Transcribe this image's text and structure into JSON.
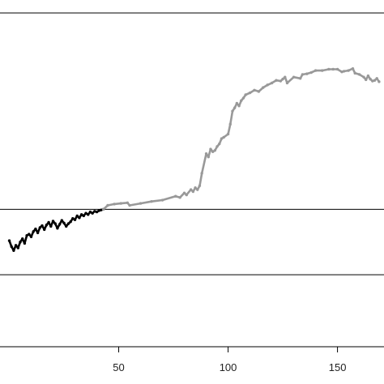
{
  "chart_data": {
    "type": "line",
    "title": "",
    "xlabel": "",
    "ylabel": "",
    "xlim": [
      -5,
      172
    ],
    "ylim": [
      -1.1,
      4.0
    ],
    "x_ticks": [
      50,
      100,
      150
    ],
    "x_tick_labels": [
      "50",
      "100",
      "150"
    ],
    "reference_lines": [
      0,
      1
    ],
    "grid": false,
    "series": [
      {
        "color": "#000000",
        "x": [
          0,
          1,
          2,
          3,
          4,
          5,
          6,
          7,
          8,
          9,
          10,
          11,
          12,
          13,
          14,
          15,
          16,
          17,
          18,
          19,
          20,
          21,
          22,
          23,
          24,
          25,
          26,
          27,
          28,
          29,
          30,
          31,
          32,
          33,
          34,
          35,
          36,
          37,
          38,
          39,
          40,
          41,
          42,
          43
        ],
        "y": [
          0.52,
          0.43,
          0.37,
          0.45,
          0.41,
          0.5,
          0.55,
          0.48,
          0.6,
          0.62,
          0.58,
          0.66,
          0.7,
          0.64,
          0.72,
          0.75,
          0.69,
          0.76,
          0.8,
          0.74,
          0.82,
          0.78,
          0.71,
          0.77,
          0.83,
          0.79,
          0.74,
          0.78,
          0.81,
          0.86,
          0.84,
          0.9,
          0.87,
          0.92,
          0.9,
          0.94,
          0.92,
          0.96,
          0.94,
          0.97,
          0.96,
          0.98,
          0.99,
          1.0
        ]
      },
      {
        "color": "#999999",
        "x": [
          43,
          45,
          48,
          51,
          54,
          55,
          60,
          65,
          70,
          76,
          78,
          80,
          81,
          83,
          84,
          85,
          86,
          87,
          88,
          90,
          91,
          92,
          93,
          94,
          95,
          96,
          97,
          98,
          100,
          101,
          102,
          103,
          104,
          105,
          106,
          107,
          108,
          110,
          112,
          114,
          116,
          118,
          120,
          122,
          124,
          125,
          126,
          127,
          130,
          133,
          134,
          136,
          138,
          140,
          143,
          146,
          148,
          150,
          152,
          153,
          155,
          157,
          158,
          160,
          162,
          163,
          164,
          165,
          166,
          167,
          168,
          169
        ],
        "y": [
          1.0,
          1.06,
          1.08,
          1.09,
          1.1,
          1.06,
          1.09,
          1.12,
          1.14,
          1.2,
          1.18,
          1.25,
          1.22,
          1.3,
          1.27,
          1.33,
          1.3,
          1.36,
          1.55,
          1.85,
          1.8,
          1.92,
          1.88,
          1.9,
          1.96,
          2.0,
          2.08,
          2.1,
          2.15,
          2.3,
          2.5,
          2.55,
          2.62,
          2.58,
          2.66,
          2.7,
          2.75,
          2.78,
          2.82,
          2.8,
          2.86,
          2.9,
          2.93,
          2.97,
          2.96,
          2.99,
          3.02,
          2.93,
          3.02,
          3.0,
          3.06,
          3.07,
          3.09,
          3.12,
          3.12,
          3.14,
          3.14,
          3.14,
          3.1,
          3.11,
          3.12,
          3.15,
          3.08,
          3.06,
          3.02,
          2.98,
          3.04,
          2.99,
          2.96,
          2.97,
          3.0,
          2.95
        ]
      }
    ]
  }
}
